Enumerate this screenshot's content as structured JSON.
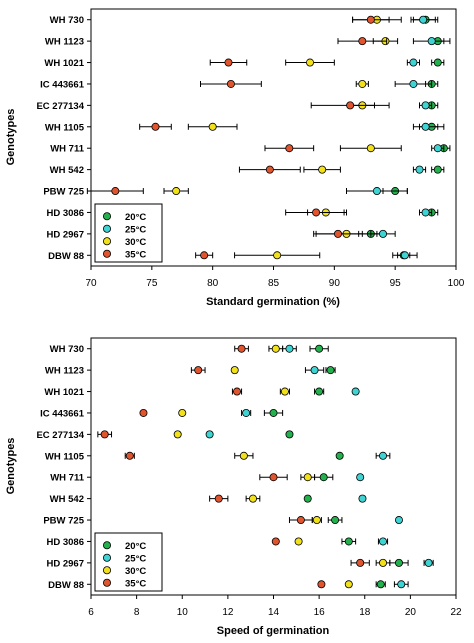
{
  "series_colors": {
    "20C": "#22b14c",
    "25C": "#3fd4d4",
    "30C": "#f2e01b",
    "35C": "#e0542e"
  },
  "chart_data": [
    {
      "type": "scatter",
      "xlabel": "Standard germination (%)",
      "ylabel": "Genotypes",
      "xlim": [
        70,
        100
      ],
      "xticks": [
        70,
        75,
        80,
        85,
        90,
        95,
        100
      ],
      "categories": [
        "WH 730",
        "WH 1123",
        "WH 1021",
        "IC 443661",
        "EC 277134",
        "WH 1105",
        "WH 711",
        "WH 542",
        "PBW 725",
        "HD 3086",
        "HD 2967",
        "DBW 88"
      ],
      "legend": {
        "position": "bottom-left"
      },
      "series": [
        {
          "name": "20°C",
          "color_key": "20C",
          "values": [
            97.5,
            98.5,
            98.5,
            98.0,
            98.0,
            98.0,
            99.0,
            98.5,
            95.0,
            98.0,
            93.0,
            95.7
          ],
          "errors": [
            1.0,
            0.5,
            0.5,
            0.5,
            0.5,
            1.0,
            0.5,
            0.5,
            1.0,
            0.5,
            1.0,
            0.5
          ]
        },
        {
          "name": "25°C",
          "color_key": "25C",
          "values": [
            97.3,
            98.0,
            96.5,
            96.5,
            97.5,
            97.5,
            98.5,
            97.0,
            93.5,
            97.5,
            94.0,
            95.8
          ],
          "errors": [
            1.0,
            1.5,
            0.5,
            1.5,
            0.5,
            1.0,
            0.5,
            0.5,
            2.5,
            0.5,
            1.0,
            1.0
          ]
        },
        {
          "name": "30°C",
          "color_key": "30C",
          "values": [
            93.5,
            94.2,
            88.0,
            92.3,
            92.3,
            80.0,
            93.0,
            89.0,
            77.0,
            89.3,
            91.0,
            85.3
          ],
          "errors": [
            2.0,
            1.0,
            2.0,
            0.5,
            1.0,
            2.0,
            2.5,
            1.5,
            1.0,
            1.5,
            2.5,
            3.5
          ]
        },
        {
          "name": "35°C",
          "color_key": "35C",
          "values": [
            93.0,
            92.3,
            81.3,
            81.5,
            91.3,
            75.3,
            86.3,
            84.7,
            72.0,
            88.5,
            90.3,
            79.3
          ],
          "errors": [
            1.5,
            2.0,
            1.5,
            2.5,
            3.2,
            1.3,
            2.0,
            2.5,
            2.3,
            2.5,
            2.0,
            0.7
          ]
        }
      ]
    },
    {
      "type": "scatter",
      "xlabel": "Speed of germination",
      "ylabel": "Genotypes",
      "xlim": [
        6,
        22
      ],
      "xticks": [
        6,
        8,
        10,
        12,
        14,
        16,
        18,
        20,
        22
      ],
      "categories": [
        "WH 730",
        "WH 1123",
        "WH 1021",
        "IC 443661",
        "EC 277134",
        "WH 1105",
        "WH 711",
        "WH 542",
        "PBW 725",
        "HD 3086",
        "HD 2967",
        "DBW 88"
      ],
      "legend": {
        "position": "bottom-left"
      },
      "series": [
        {
          "name": "20°C",
          "color_key": "20C",
          "values": [
            16.0,
            16.5,
            16.0,
            14.0,
            14.7,
            16.9,
            16.2,
            15.5,
            16.7,
            17.3,
            19.5,
            18.7
          ],
          "errors": [
            0.4,
            0.2,
            0.2,
            0.4,
            0.1,
            0.1,
            0.4,
            0.1,
            0.3,
            0.3,
            0.4,
            0.2
          ]
        },
        {
          "name": "25°C",
          "color_key": "25C",
          "values": [
            14.7,
            15.8,
            17.6,
            12.8,
            11.2,
            18.8,
            17.8,
            17.9,
            19.5,
            18.8,
            20.8,
            19.6
          ],
          "errors": [
            0.3,
            0.4,
            0.1,
            0.2,
            0.1,
            0.3,
            0.1,
            0.1,
            0.1,
            0.2,
            0.2,
            0.3
          ]
        },
        {
          "name": "30°C",
          "color_key": "30C",
          "values": [
            14.1,
            12.3,
            14.5,
            10.0,
            9.8,
            12.7,
            15.5,
            13.1,
            15.9,
            15.1,
            18.8,
            17.3
          ],
          "errors": [
            0.3,
            0.1,
            0.2,
            0.1,
            0.1,
            0.4,
            0.3,
            0.3,
            0.2,
            0.1,
            0.3,
            0.1
          ]
        },
        {
          "name": "35°C",
          "color_key": "35C",
          "values": [
            12.6,
            10.7,
            12.4,
            8.3,
            6.6,
            7.7,
            14.0,
            11.6,
            15.2,
            14.1,
            17.8,
            16.1
          ],
          "errors": [
            0.3,
            0.3,
            0.2,
            0.1,
            0.3,
            0.2,
            0.6,
            0.4,
            0.5,
            0.1,
            0.4,
            0.1
          ]
        }
      ]
    }
  ]
}
